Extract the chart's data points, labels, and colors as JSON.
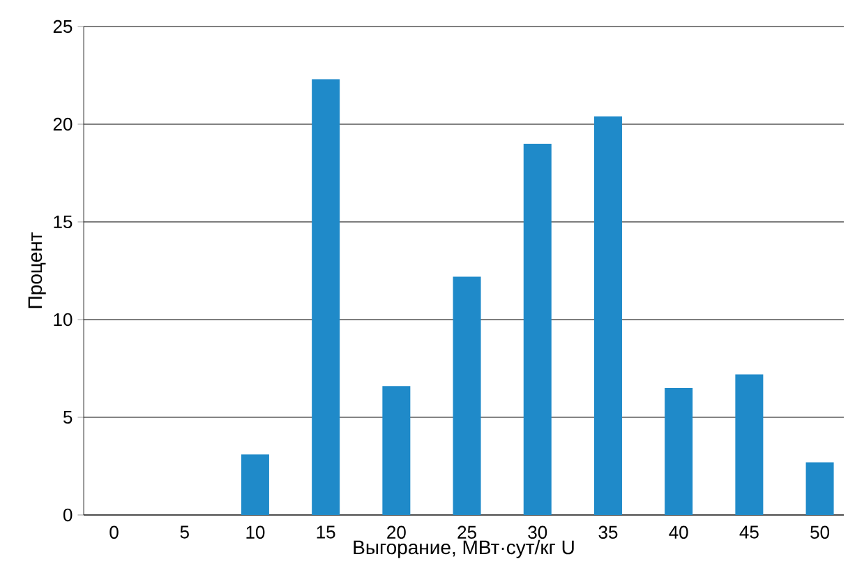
{
  "chart_data": {
    "type": "bar",
    "xlabel": "Выгорание, МВт·сут/кг U",
    "ylabel": "Процент",
    "categories": [
      "0",
      "5",
      "10",
      "15",
      "20",
      "25",
      "30",
      "35",
      "40",
      "45",
      "50"
    ],
    "values": [
      0,
      0,
      3.1,
      22.3,
      6.6,
      12.2,
      19.0,
      20.4,
      6.5,
      7.2,
      2.7
    ],
    "color": "#1f8ac9",
    "ylim": [
      0,
      25
    ],
    "yticks": [
      0,
      5,
      10,
      15,
      20,
      25
    ],
    "grid": "y"
  }
}
